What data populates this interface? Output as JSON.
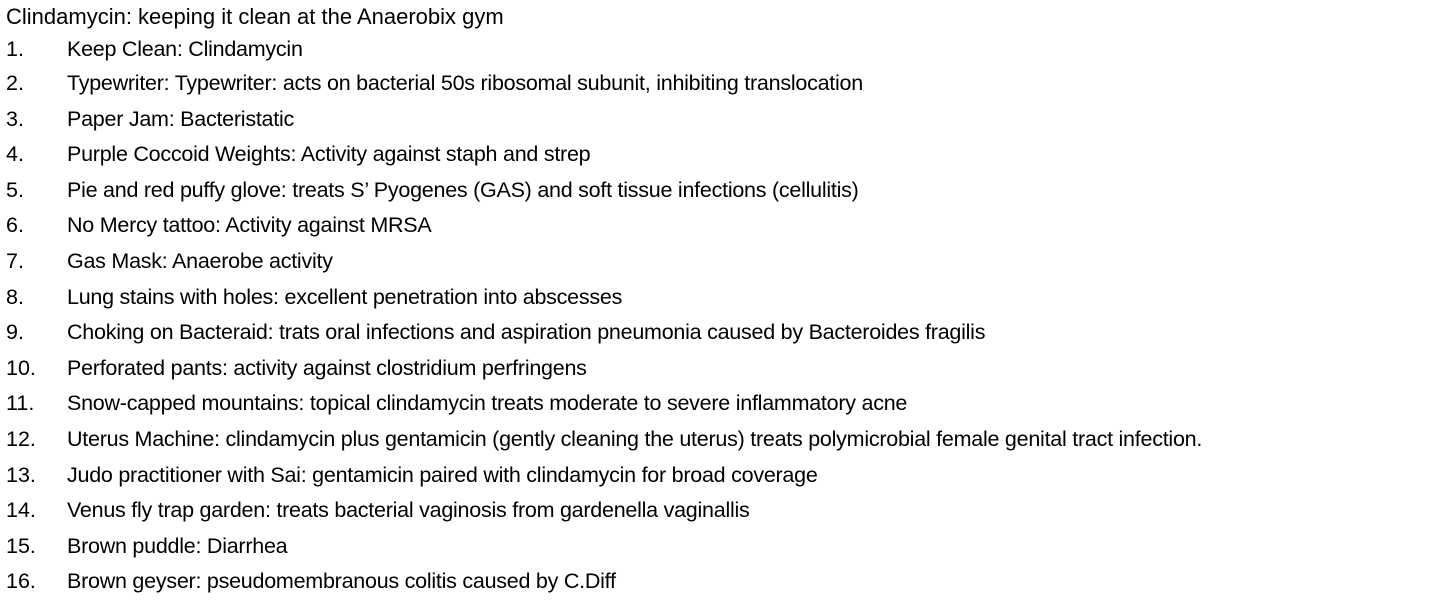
{
  "document": {
    "title": "Clindamycin: keeping it clean at the Anaerobix gym",
    "items": [
      {
        "number": "1.",
        "text": "Keep Clean: Clindamycin"
      },
      {
        "number": "2.",
        "text": "Typewriter: Typewriter: acts on bacterial 50s ribosomal subunit, inhibiting translocation"
      },
      {
        "number": "3.",
        "text": "Paper Jam: Bacteristatic"
      },
      {
        "number": "4.",
        "text": "Purple Coccoid Weights: Activity against staph and strep"
      },
      {
        "number": "5.",
        "text": "Pie and red puffy glove: treats S’ Pyogenes (GAS) and soft tissue infections (cellulitis)"
      },
      {
        "number": "6.",
        "text": "No Mercy tattoo: Activity against MRSA"
      },
      {
        "number": "7.",
        "text": "Gas Mask: Anaerobe activity"
      },
      {
        "number": "8.",
        "text": "Lung stains with holes: excellent penetration into abscesses"
      },
      {
        "number": "9.",
        "text": "Choking on Bacteraid: trats oral infections and aspiration pneumonia caused by Bacteroides fragilis"
      },
      {
        "number": "10.",
        "text": "Perforated pants: activity against clostridium perfringens"
      },
      {
        "number": "11.",
        "text": "Snow-capped mountains: topical clindamycin treats moderate to severe inflammatory acne"
      },
      {
        "number": "12.",
        "text": "Uterus Machine: clindamycin plus gentamicin (gently cleaning the uterus) treats polymicrobial female genital tract infection."
      },
      {
        "number": "13.",
        "text": "Judo practitioner with Sai: gentamicin paired with clindamycin for broad coverage"
      },
      {
        "number": "14.",
        "text": "Venus fly trap garden: treats bacterial vaginosis from gardenella vaginallis"
      },
      {
        "number": "15.",
        "text": "Brown puddle: Diarrhea"
      },
      {
        "number": "16.",
        "text": "Brown geyser: pseudomembranous colitis caused by C.Diff"
      }
    ]
  }
}
